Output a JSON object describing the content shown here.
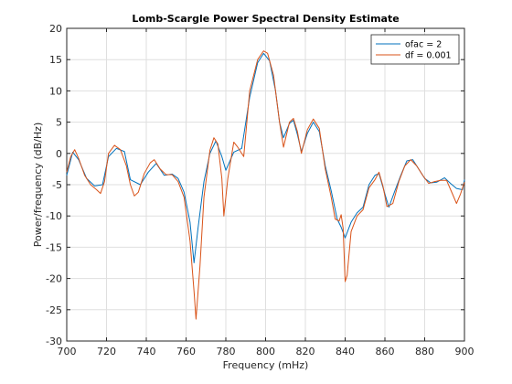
{
  "chart_data": {
    "type": "line",
    "title": "Lomb-Scargle Power Spectral Density Estimate",
    "xlabel": "Frequency (mHz)",
    "ylabel": "Power/frequency (dB/Hz)",
    "xlim": [
      700,
      900
    ],
    "ylim": [
      -30,
      20
    ],
    "xticks": [
      700,
      720,
      740,
      760,
      780,
      800,
      820,
      840,
      860,
      880,
      900
    ],
    "yticks": [
      -30,
      -25,
      -20,
      -15,
      -10,
      -5,
      0,
      5,
      10,
      15,
      20
    ],
    "xtick_labels": [
      "700",
      "720",
      "740",
      "760",
      "780",
      "800",
      "820",
      "840",
      "860",
      "880",
      "900"
    ],
    "ytick_labels": [
      "-30",
      "-25",
      "-20",
      "-15",
      "-10",
      "-5",
      "0",
      "5",
      "10",
      "15",
      "20"
    ],
    "grid": true,
    "legend_position": "top-right",
    "series": [
      {
        "name": "ofac = 2",
        "color": "#0072BD",
        "points": [
          [
            700,
            -3.5
          ],
          [
            703,
            0.2
          ],
          [
            706,
            -1.0
          ],
          [
            710,
            -4.0
          ],
          [
            714,
            -5.2
          ],
          [
            718,
            -5.0
          ],
          [
            721,
            -0.5
          ],
          [
            725,
            0.8
          ],
          [
            729,
            0.3
          ],
          [
            732,
            -4.2
          ],
          [
            737,
            -5.0
          ],
          [
            741,
            -3.0
          ],
          [
            745,
            -1.6
          ],
          [
            749,
            -3.5
          ],
          [
            753,
            -3.3
          ],
          [
            756,
            -4.0
          ],
          [
            759,
            -6.2
          ],
          [
            762,
            -11.0
          ],
          [
            764,
            -17.5
          ],
          [
            766,
            -12.0
          ],
          [
            769,
            -4.5
          ],
          [
            772,
            0.0
          ],
          [
            775,
            2.0
          ],
          [
            778,
            -0.5
          ],
          [
            780,
            -2.7
          ],
          [
            784,
            0.2
          ],
          [
            788,
            0.8
          ],
          [
            792,
            9.0
          ],
          [
            796,
            14.5
          ],
          [
            799,
            16.0
          ],
          [
            802,
            14.8
          ],
          [
            805,
            10.0
          ],
          [
            807,
            5.0
          ],
          [
            809,
            2.5
          ],
          [
            812,
            4.8
          ],
          [
            814,
            5.3
          ],
          [
            816,
            3.0
          ],
          [
            818,
            0.3
          ],
          [
            821,
            3.2
          ],
          [
            824,
            5.0
          ],
          [
            827,
            3.5
          ],
          [
            830,
            -2.0
          ],
          [
            833,
            -6.0
          ],
          [
            836,
            -10.5
          ],
          [
            838,
            -11.8
          ],
          [
            840,
            -13.5
          ],
          [
            843,
            -11.0
          ],
          [
            846,
            -9.5
          ],
          [
            849,
            -8.6
          ],
          [
            852,
            -5.0
          ],
          [
            855,
            -3.5
          ],
          [
            857,
            -3.2
          ],
          [
            860,
            -6.5
          ],
          [
            862,
            -8.6
          ],
          [
            865,
            -6.0
          ],
          [
            868,
            -3.5
          ],
          [
            871,
            -1.2
          ],
          [
            874,
            -1.0
          ],
          [
            877,
            -2.5
          ],
          [
            880,
            -4.0
          ],
          [
            883,
            -4.7
          ],
          [
            886,
            -4.6
          ],
          [
            890,
            -3.9
          ],
          [
            893,
            -4.8
          ],
          [
            896,
            -5.6
          ],
          [
            899,
            -5.8
          ],
          [
            900,
            -4.2
          ]
        ]
      },
      {
        "name": "df = 0.001",
        "color": "#D95319",
        "points": [
          [
            700,
            -3.0
          ],
          [
            702,
            -0.5
          ],
          [
            704,
            0.6
          ],
          [
            706,
            -0.8
          ],
          [
            709,
            -3.5
          ],
          [
            712,
            -5.0
          ],
          [
            715,
            -5.8
          ],
          [
            717,
            -6.4
          ],
          [
            719,
            -4.5
          ],
          [
            721,
            0.0
          ],
          [
            724,
            1.3
          ],
          [
            727,
            0.6
          ],
          [
            730,
            -2.0
          ],
          [
            732,
            -5.0
          ],
          [
            734,
            -6.8
          ],
          [
            736,
            -6.2
          ],
          [
            739,
            -3.2
          ],
          [
            742,
            -1.5
          ],
          [
            744,
            -1.0
          ],
          [
            747,
            -2.5
          ],
          [
            750,
            -3.4
          ],
          [
            753,
            -3.4
          ],
          [
            756,
            -4.5
          ],
          [
            759,
            -7.0
          ],
          [
            762,
            -14.0
          ],
          [
            764,
            -22.0
          ],
          [
            765,
            -26.5
          ],
          [
            767,
            -18.0
          ],
          [
            769,
            -7.0
          ],
          [
            772,
            0.5
          ],
          [
            774,
            2.5
          ],
          [
            776,
            1.5
          ],
          [
            778,
            -4.0
          ],
          [
            779,
            -10.0
          ],
          [
            781,
            -4.0
          ],
          [
            784,
            1.8
          ],
          [
            786,
            1.0
          ],
          [
            789,
            -0.5
          ],
          [
            792,
            10.0
          ],
          [
            796,
            15.0
          ],
          [
            799,
            16.4
          ],
          [
            801,
            16.0
          ],
          [
            804,
            12.5
          ],
          [
            807,
            5.0
          ],
          [
            809,
            1.0
          ],
          [
            812,
            5.0
          ],
          [
            814,
            5.6
          ],
          [
            816,
            3.5
          ],
          [
            818,
            0.0
          ],
          [
            821,
            3.8
          ],
          [
            824,
            5.5
          ],
          [
            827,
            4.0
          ],
          [
            830,
            -2.5
          ],
          [
            833,
            -7.0
          ],
          [
            835,
            -10.5
          ],
          [
            837,
            -10.8
          ],
          [
            838,
            -9.8
          ],
          [
            839,
            -12.0
          ],
          [
            840,
            -20.5
          ],
          [
            841,
            -19.5
          ],
          [
            843,
            -12.5
          ],
          [
            846,
            -10.0
          ],
          [
            849,
            -9.0
          ],
          [
            852,
            -5.5
          ],
          [
            855,
            -4.2
          ],
          [
            857,
            -3.0
          ],
          [
            859,
            -5.2
          ],
          [
            861,
            -8.5
          ],
          [
            864,
            -8.0
          ],
          [
            867,
            -4.5
          ],
          [
            870,
            -2.0
          ],
          [
            873,
            -1.0
          ],
          [
            876,
            -2.0
          ],
          [
            879,
            -3.5
          ],
          [
            882,
            -4.8
          ],
          [
            885,
            -4.5
          ],
          [
            888,
            -4.3
          ],
          [
            891,
            -4.3
          ],
          [
            894,
            -6.5
          ],
          [
            896,
            -8.0
          ],
          [
            898,
            -6.5
          ],
          [
            900,
            -4.6
          ]
        ]
      }
    ]
  }
}
